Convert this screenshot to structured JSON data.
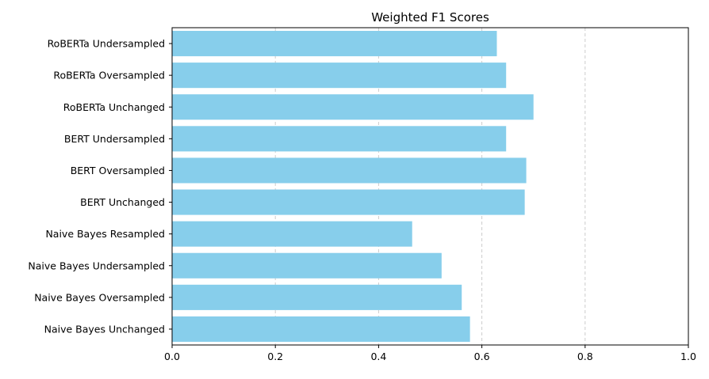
{
  "chart_data": {
    "type": "bar",
    "orientation": "horizontal",
    "title": "Weighted F1 Scores",
    "xlabel": "",
    "ylabel": "",
    "xlim": [
      0,
      1
    ],
    "x_ticks": [
      "0.0",
      "0.2",
      "0.4",
      "0.6",
      "0.8",
      "1.0"
    ],
    "grid": "x-axis dashed",
    "bar_color": "#87CEEB",
    "categories": [
      "RoBERTa Undersampled",
      "RoBERTa Oversampled",
      "RoBERTa Unchanged",
      "BERT Undersampled",
      "BERT Oversampled",
      "BERT Unchanged",
      "Naive Bayes Resampled",
      "Naive Bayes Undersampled",
      "Naive Bayes Oversampled",
      "Naive Bayes Unchanged"
    ],
    "values": [
      0.629,
      0.647,
      0.7,
      0.647,
      0.686,
      0.683,
      0.465,
      0.522,
      0.561,
      0.577
    ]
  }
}
